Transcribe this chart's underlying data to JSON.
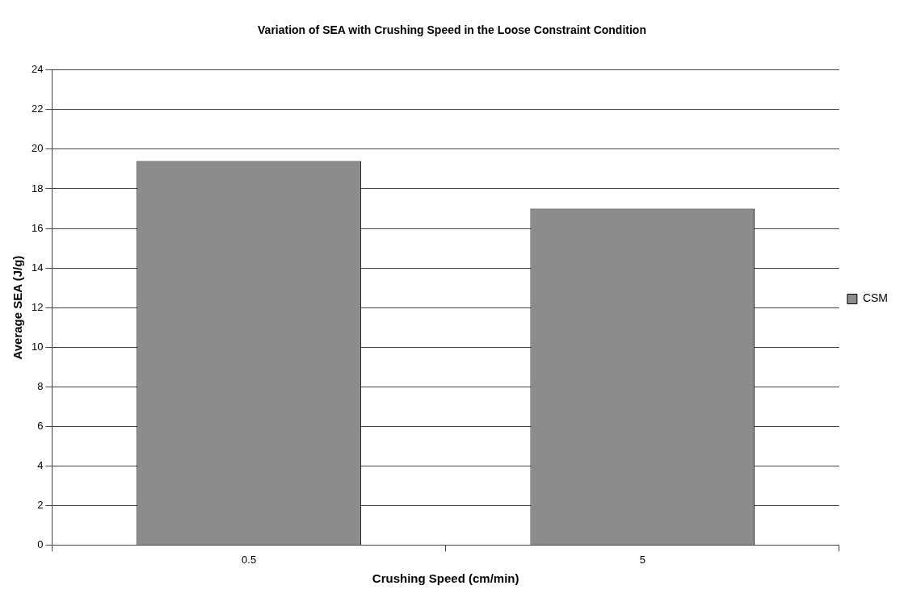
{
  "chart_data": {
    "type": "bar",
    "title": "Variation of SEA with Crushing Speed in the Loose Constraint Condition",
    "xlabel": "Crushing Speed (cm/min)",
    "ylabel": "Average SEA (J/g)",
    "categories": [
      "0.5",
      "5"
    ],
    "series": [
      {
        "name": "CSM",
        "color": "#8c8c8c",
        "values": [
          19.4,
          17.0
        ]
      }
    ],
    "ylim": [
      0,
      24
    ],
    "yticks": [
      0,
      2,
      4,
      6,
      8,
      10,
      12,
      14,
      16,
      18,
      20,
      22,
      24
    ],
    "grid": "y",
    "legend": "right"
  }
}
